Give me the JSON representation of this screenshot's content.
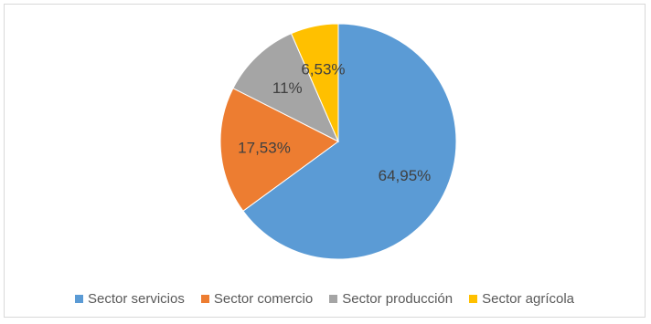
{
  "chart_data": {
    "type": "pie",
    "title": "",
    "categories": [
      "Sector servicios",
      "Sector comercio",
      "Sector producción",
      "Sector agrícola"
    ],
    "values": [
      64.95,
      17.53,
      11,
      6.53
    ],
    "data_labels": [
      "64,95%",
      "17,53%",
      "11%",
      "6,53%"
    ],
    "colors": [
      "#5b9bd5",
      "#ed7d31",
      "#a5a5a5",
      "#ffc000"
    ],
    "start_angle_deg": 0,
    "direction": "clockwise",
    "legend_position": "bottom"
  }
}
